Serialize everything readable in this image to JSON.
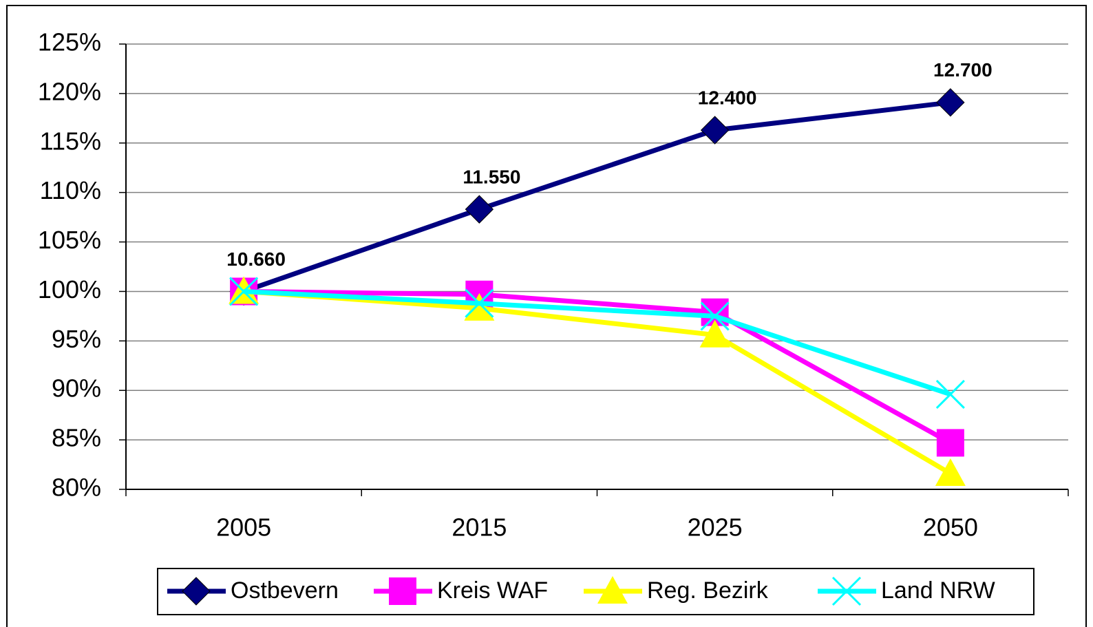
{
  "chart_data": {
    "type": "line",
    "categories": [
      "2005",
      "2015",
      "2025",
      "2050"
    ],
    "series": [
      {
        "name": "Ostbevern",
        "color": "#000080",
        "marker": "diamond",
        "values": [
          100,
          108.3,
          116.3,
          119.1
        ]
      },
      {
        "name": "Kreis WAF",
        "color": "#ff00ff",
        "marker": "square",
        "values": [
          100,
          99.7,
          97.9,
          84.7
        ]
      },
      {
        "name": "Reg. Bezirk",
        "color": "#ffff00",
        "marker": "triangle",
        "values": [
          100,
          98.3,
          95.6,
          81.6
        ]
      },
      {
        "name": "Land NRW",
        "color": "#00ffff",
        "marker": "x",
        "values": [
          100,
          98.8,
          97.5,
          89.6
        ]
      }
    ],
    "annotations": [
      "10.660",
      "11.550",
      "12.400",
      "12.700"
    ],
    "ylim": [
      80,
      125
    ],
    "yticks": [
      {
        "value": 80,
        "label": "80%"
      },
      {
        "value": 85,
        "label": "85%"
      },
      {
        "value": 90,
        "label": "90%"
      },
      {
        "value": 95,
        "label": "95%"
      },
      {
        "value": 100,
        "label": "100%"
      },
      {
        "value": 105,
        "label": "105%"
      },
      {
        "value": 110,
        "label": "110%"
      },
      {
        "value": 115,
        "label": "115%"
      },
      {
        "value": 120,
        "label": "120%"
      },
      {
        "value": 125,
        "label": "125%"
      }
    ],
    "grid": true,
    "legend": "bottom"
  }
}
